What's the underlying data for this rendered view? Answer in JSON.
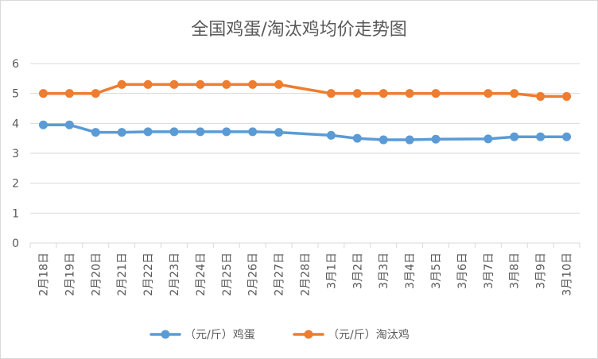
{
  "chart_data": {
    "type": "line",
    "title": "全国鸡蛋/淘汰鸡均价走势图",
    "xlabel": "",
    "ylabel": "",
    "ylim": [
      0,
      6
    ],
    "yticks": [
      "0",
      "1",
      "2",
      "3",
      "4",
      "5",
      "6"
    ],
    "grid": true,
    "legend_position": "bottom",
    "categories": [
      "2月18日",
      "2月19日",
      "2月20日",
      "2月21日",
      "2月22日",
      "2月23日",
      "2月24日",
      "2月25日",
      "2月26日",
      "2月27日",
      "2月28日",
      "3月1日",
      "3月2日",
      "3月3日",
      "3月4日",
      "3月5日",
      "3月6日",
      "3月7日",
      "3月8日",
      "3月9日",
      "3月10日"
    ],
    "series": [
      {
        "name": "（元/斤）鸡蛋",
        "color": "#5b9bd5",
        "values": [
          3.95,
          3.95,
          3.7,
          3.7,
          3.72,
          3.72,
          3.72,
          3.72,
          3.72,
          3.7,
          null,
          3.6,
          3.5,
          3.45,
          3.45,
          3.47,
          null,
          3.48,
          3.55,
          3.55,
          3.55
        ]
      },
      {
        "name": "（元/斤）淘汰鸡",
        "color": "#ed7d31",
        "values": [
          5.0,
          5.0,
          5.0,
          5.3,
          5.3,
          5.3,
          5.3,
          5.3,
          5.3,
          5.3,
          null,
          5.0,
          5.0,
          5.0,
          5.0,
          5.0,
          null,
          5.0,
          5.0,
          4.9,
          4.9
        ]
      }
    ]
  }
}
